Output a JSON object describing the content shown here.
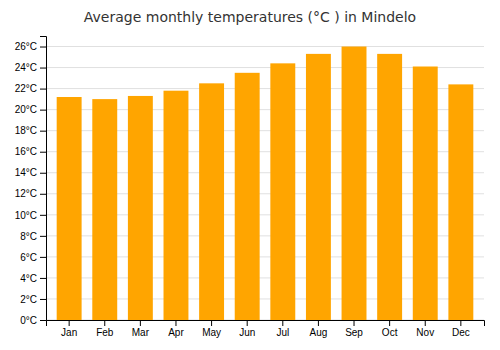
{
  "chart_data": {
    "type": "bar",
    "title": "Average monthly temperatures (°C ) in Mindelo",
    "categories": [
      "Jan",
      "Feb",
      "Mar",
      "Apr",
      "May",
      "Jun",
      "Jul",
      "Aug",
      "Sep",
      "Oct",
      "Nov",
      "Dec"
    ],
    "values": [
      21.2,
      21.0,
      21.3,
      21.8,
      22.5,
      23.5,
      24.4,
      25.3,
      26.0,
      25.3,
      24.1,
      22.4
    ],
    "color": "#FFA500",
    "ylim": [
      0,
      27
    ],
    "yticks": [
      {
        "value": 0,
        "label": "0°C"
      },
      {
        "value": 2,
        "label": "2°C"
      },
      {
        "value": 4,
        "label": "4°C"
      },
      {
        "value": 6,
        "label": "6°C"
      },
      {
        "value": 8,
        "label": "8°C"
      },
      {
        "value": 10,
        "label": "10°C"
      },
      {
        "value": 12,
        "label": "12°C"
      },
      {
        "value": 14,
        "label": "14°C"
      },
      {
        "value": 16,
        "label": "16°C"
      },
      {
        "value": 18,
        "label": "18°C"
      },
      {
        "value": 20,
        "label": "20°C"
      },
      {
        "value": 22,
        "label": "22°C"
      },
      {
        "value": 24,
        "label": "24°C"
      },
      {
        "value": 26,
        "label": "26°C"
      }
    ],
    "grid": true
  }
}
